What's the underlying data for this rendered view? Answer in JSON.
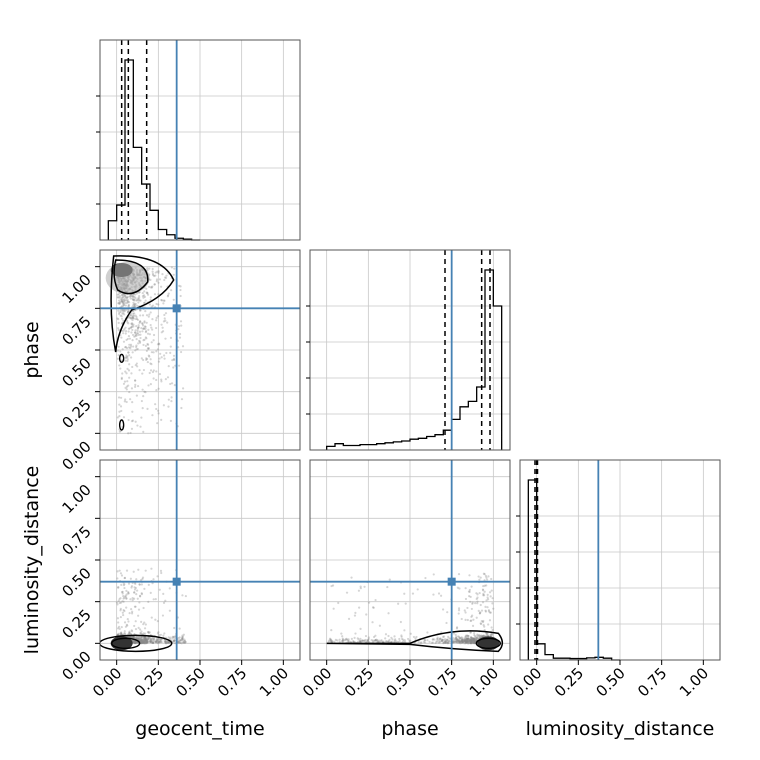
{
  "colors": {
    "truth": "#4682b4",
    "hist": "#000000",
    "grid": "#c8c8c8",
    "points": "#888888"
  },
  "chart_data": {
    "type": "corner",
    "parameters": [
      "geocent_time",
      "phase",
      "luminosity_distance"
    ],
    "truths": {
      "geocent_time": 0.36,
      "phase": 0.75,
      "luminosity_distance": 0.37
    },
    "xlim": [
      -0.1,
      1.1
    ],
    "ylim": [
      -0.1,
      1.1
    ],
    "ticks": [
      "0.00",
      "0.25",
      "0.50",
      "0.75",
      "1.00"
    ],
    "grid": true,
    "marginals": [
      {
        "parameter": "geocent_time",
        "bin_edges": [
          -0.05,
          -0.0,
          0.05,
          0.1,
          0.15,
          0.2,
          0.25,
          0.3,
          0.35,
          0.4,
          0.45,
          0.5
        ],
        "counts": [
          0.11,
          0.2,
          1.03,
          0.53,
          0.32,
          0.17,
          0.06,
          0.03,
          0.01,
          0.005,
          0.0
        ],
        "quantiles": [
          0.03,
          0.07,
          0.18
        ]
      },
      {
        "parameter": "phase",
        "bin_edges": [
          0.0,
          0.05,
          0.1,
          0.15,
          0.2,
          0.25,
          0.3,
          0.35,
          0.4,
          0.45,
          0.5,
          0.55,
          0.6,
          0.65,
          0.7,
          0.75,
          0.8,
          0.85,
          0.9,
          0.95,
          1.0,
          1.05
        ],
        "counts": [
          0.02,
          0.035,
          0.025,
          0.025,
          0.03,
          0.03,
          0.035,
          0.04,
          0.045,
          0.05,
          0.06,
          0.065,
          0.075,
          0.085,
          0.11,
          0.17,
          0.24,
          0.27,
          0.35,
          1.0,
          0.8
        ],
        "quantiles": [
          0.71,
          0.93,
          0.98
        ]
      },
      {
        "parameter": "luminosity_distance",
        "bin_edges": [
          -0.05,
          0.0,
          0.05,
          0.1,
          0.15,
          0.2,
          0.25,
          0.3,
          0.35,
          0.4,
          0.45,
          0.5
        ],
        "counts": [
          1.0,
          0.09,
          0.03,
          0.01,
          0.01,
          0.008,
          0.008,
          0.012,
          0.015,
          0.01,
          0.0
        ],
        "quantiles": [
          -0.01,
          0.0,
          0.005
        ]
      }
    ],
    "pairs": [
      {
        "x": "geocent_time",
        "y": "phase",
        "density_peak": [
          0.03,
          0.98
        ]
      },
      {
        "x": "geocent_time",
        "y": "luminosity_distance",
        "density_peak": [
          0.03,
          0.0
        ]
      },
      {
        "x": "phase",
        "y": "luminosity_distance",
        "density_peak": [
          0.97,
          0.0
        ]
      }
    ]
  }
}
